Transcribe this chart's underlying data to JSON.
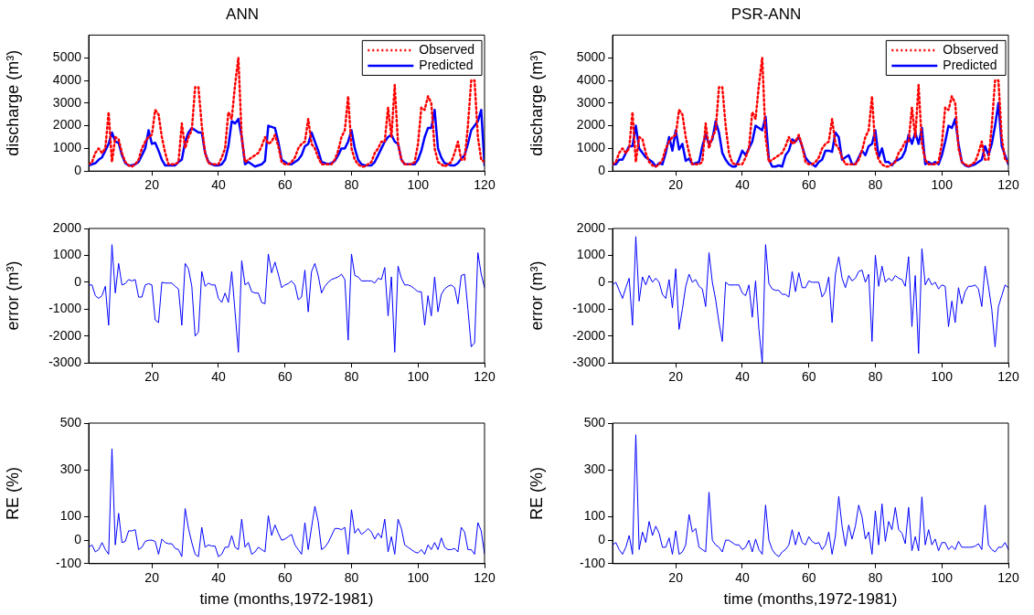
{
  "chart_data": [
    {
      "type": "line",
      "title": "ANN",
      "ylabel": "discharge (m³)",
      "legend": "top right",
      "xlim": [
        1,
        120
      ],
      "xticks": [
        20,
        40,
        60,
        80,
        100,
        120
      ],
      "ylim": [
        0,
        6000
      ],
      "yticks": [
        0,
        1000,
        2000,
        3000,
        4000,
        5000
      ],
      "x": [
        1,
        2,
        3,
        4,
        5,
        6,
        7,
        8,
        9,
        10,
        11,
        12,
        13,
        14,
        15,
        16,
        17,
        18,
        19,
        20,
        21,
        22,
        23,
        24,
        25,
        26,
        27,
        28,
        29,
        30,
        31,
        32,
        33,
        34,
        35,
        36,
        37,
        38,
        39,
        40,
        41,
        42,
        43,
        44,
        45,
        46,
        47,
        48,
        49,
        50,
        51,
        52,
        53,
        54,
        55,
        56,
        57,
        58,
        59,
        60,
        61,
        62,
        63,
        64,
        65,
        66,
        67,
        68,
        69,
        70,
        71,
        72,
        73,
        74,
        75,
        76,
        77,
        78,
        79,
        80,
        81,
        82,
        83,
        84,
        85,
        86,
        87,
        88,
        89,
        90,
        91,
        92,
        93,
        94,
        95,
        96,
        97,
        98,
        99,
        100,
        101,
        102,
        103,
        104,
        105,
        106,
        107,
        108,
        109,
        110,
        111,
        112,
        113,
        114,
        115,
        116,
        117,
        118,
        119,
        120
      ],
      "series": [
        {
          "name": "Observed",
          "color": "#ff0000",
          "line_style": "dotted",
          "values": [
            300,
            400,
            800,
            1000,
            800,
            1000,
            2600,
            400,
            1500,
            1400,
            800,
            400,
            250,
            200,
            300,
            500,
            1000,
            1300,
            1500,
            1600,
            2700,
            2500,
            1500,
            800,
            300,
            300,
            300,
            400,
            2100,
            1000,
            1500,
            1800,
            3700,
            3700,
            2000,
            800,
            350,
            300,
            300,
            300,
            600,
            1000,
            2600,
            2300,
            3800,
            5000,
            1500,
            400,
            500,
            600,
            700,
            800,
            1100,
            1500,
            1200,
            1300,
            1600,
            1100,
            400,
            300,
            300,
            400,
            600,
            1000,
            1200,
            1300,
            2300,
            1200,
            1000,
            600,
            300,
            300,
            300,
            300,
            500,
            900,
            1500,
            1800,
            3300,
            1000,
            500,
            300,
            200,
            200,
            300,
            400,
            800,
            1000,
            1300,
            1300,
            2800,
            1500,
            3800,
            1200,
            500,
            300,
            300,
            300,
            400,
            1200,
            2800,
            2700,
            3300,
            3000,
            1000,
            400,
            300,
            200,
            300,
            400,
            800,
            1300,
            500,
            500,
            2000,
            4000,
            4000,
            1500,
            500,
            400
          ]
        },
        {
          "name": "Predicted",
          "color": "#0000ff",
          "line_style": "solid",
          "values": [
            250,
            300,
            350,
            500,
            600,
            900,
            1200,
            1700,
            1300,
            1250,
            700,
            350,
            250,
            250,
            300,
            400,
            700,
            1000,
            1800,
            1200,
            1250,
            900,
            500,
            250,
            250,
            250,
            250,
            400,
            500,
            1300,
            1700,
            1900,
            1800,
            1700,
            1700,
            800,
            400,
            300,
            250,
            250,
            300,
            500,
            1100,
            2200,
            2100,
            2300,
            1500,
            300,
            400,
            300,
            200,
            250,
            300,
            450,
            2000,
            1950,
            1900,
            1300,
            500,
            400,
            300,
            300,
            400,
            500,
            700,
            1100,
            1200,
            1700,
            1300,
            900,
            400,
            350,
            300,
            350,
            450,
            700,
            1000,
            1000,
            1300,
            1800,
            1000,
            500,
            300,
            250,
            250,
            250,
            400,
            700,
            1000,
            1300,
            1500,
            1600,
            1300,
            1200,
            500,
            300,
            300,
            300,
            300,
            500,
            900,
            1500,
            1900,
            1900,
            2700,
            1000,
            600,
            350,
            300,
            250,
            250,
            350,
            550,
            700,
            1200,
            1800,
            2000,
            2200,
            2700,
            250
          ]
        }
      ]
    },
    {
      "type": "line",
      "title": "PSR-ANN",
      "ylabel": "discharge (m³)",
      "legend": "top right",
      "xlim": [
        1,
        120
      ],
      "xticks": [
        20,
        40,
        60,
        80,
        100,
        120
      ],
      "ylim": [
        0,
        6000
      ],
      "yticks": [
        0,
        1000,
        2000,
        3000,
        4000,
        5000
      ],
      "x": [
        1,
        2,
        3,
        4,
        5,
        6,
        7,
        8,
        9,
        10,
        11,
        12,
        13,
        14,
        15,
        16,
        17,
        18,
        19,
        20,
        21,
        22,
        23,
        24,
        25,
        26,
        27,
        28,
        29,
        30,
        31,
        32,
        33,
        34,
        35,
        36,
        37,
        38,
        39,
        40,
        41,
        42,
        43,
        44,
        45,
        46,
        47,
        48,
        49,
        50,
        51,
        52,
        53,
        54,
        55,
        56,
        57,
        58,
        59,
        60,
        61,
        62,
        63,
        64,
        65,
        66,
        67,
        68,
        69,
        70,
        71,
        72,
        73,
        74,
        75,
        76,
        77,
        78,
        79,
        80,
        81,
        82,
        83,
        84,
        85,
        86,
        87,
        88,
        89,
        90,
        91,
        92,
        93,
        94,
        95,
        96,
        97,
        98,
        99,
        100,
        101,
        102,
        103,
        104,
        105,
        106,
        107,
        108,
        109,
        110,
        111,
        112,
        113,
        114,
        115,
        116,
        117,
        118,
        119,
        120
      ],
      "series": [
        {
          "name": "Observed",
          "color": "#ff0000",
          "line_style": "dotted",
          "values": [
            300,
            400,
            800,
            1000,
            800,
            1000,
            2600,
            400,
            1500,
            1400,
            800,
            400,
            250,
            200,
            300,
            500,
            1000,
            1300,
            1500,
            1600,
            2700,
            2500,
            1500,
            800,
            300,
            300,
            300,
            400,
            2100,
            1000,
            1500,
            1800,
            3700,
            3700,
            2000,
            800,
            350,
            300,
            300,
            300,
            600,
            1000,
            2600,
            2300,
            3800,
            5000,
            1500,
            400,
            500,
            600,
            700,
            800,
            1100,
            1500,
            1200,
            1300,
            1600,
            1100,
            400,
            300,
            300,
            400,
            600,
            1000,
            1200,
            1300,
            2300,
            1200,
            1000,
            600,
            300,
            300,
            300,
            300,
            500,
            900,
            1500,
            1800,
            3300,
            1000,
            500,
            300,
            200,
            200,
            300,
            400,
            800,
            1000,
            1300,
            1300,
            2800,
            1500,
            3800,
            1200,
            500,
            300,
            300,
            300,
            400,
            1200,
            2800,
            2700,
            3300,
            3000,
            1000,
            400,
            300,
            200,
            300,
            400,
            800,
            1300,
            500,
            500,
            2000,
            4000,
            4000,
            1500,
            500,
            400
          ]
        },
        {
          "name": "Predicted",
          "color": "#0000ff",
          "line_style": "solid",
          "values": [
            300,
            300,
            500,
            500,
            800,
            1100,
            1100,
            2000,
            1000,
            800,
            600,
            500,
            400,
            200,
            350,
            300,
            800,
            1500,
            900,
            1800,
            950,
            1200,
            450,
            550,
            300,
            350,
            400,
            1100,
            1600,
            1200,
            1400,
            2200,
            1700,
            800,
            500,
            300,
            200,
            200,
            500,
            900,
            700,
            1000,
            1300,
            2000,
            1900,
            1800,
            2400,
            500,
            200,
            200,
            250,
            200,
            700,
            900,
            1400,
            1300,
            1500,
            1100,
            600,
            400,
            300,
            200,
            400,
            500,
            900,
            900,
            850,
            1700,
            1500,
            500,
            600,
            700,
            300,
            300,
            600,
            900,
            700,
            1100,
            1200,
            1800,
            600,
            1000,
            400,
            400,
            250,
            450,
            500,
            600,
            900,
            1600,
            1200,
            1700,
            1200,
            1900,
            300,
            400,
            300,
            400,
            300,
            700,
            1300,
            2000,
            1900,
            2300,
            1200,
            400,
            250,
            200,
            250,
            300,
            400,
            500,
            1100,
            700,
            1200,
            2000,
            3000,
            1100,
            700,
            300
          ]
        }
      ]
    },
    {
      "type": "line",
      "ylabel": "error (m³)",
      "xlim": [
        1,
        120
      ],
      "xticks": [
        20,
        40,
        60,
        80,
        100,
        120
      ],
      "ylim": [
        -3000,
        2000
      ],
      "yticks": [
        -3000,
        -2000,
        -1000,
        0,
        1000,
        2000
      ],
      "x": [
        1,
        2,
        3,
        4,
        5,
        6,
        7,
        8,
        9,
        10,
        11,
        12,
        13,
        14,
        15,
        16,
        17,
        18,
        19,
        20,
        21,
        22,
        23,
        24,
        25,
        26,
        27,
        28,
        29,
        30,
        31,
        32,
        33,
        34,
        35,
        36,
        37,
        38,
        39,
        40,
        41,
        42,
        43,
        44,
        45,
        46,
        47,
        48,
        49,
        50,
        51,
        52,
        53,
        54,
        55,
        56,
        57,
        58,
        59,
        60,
        61,
        62,
        63,
        64,
        65,
        66,
        67,
        68,
        69,
        70,
        71,
        72,
        73,
        74,
        75,
        76,
        77,
        78,
        79,
        80,
        81,
        82,
        83,
        84,
        85,
        86,
        87,
        88,
        89,
        90,
        91,
        92,
        93,
        94,
        95,
        96,
        97,
        98,
        99,
        100,
        101,
        102,
        103,
        104,
        105,
        106,
        107,
        108,
        109,
        110,
        111,
        112,
        113,
        114,
        115,
        116,
        117,
        118,
        119,
        120
      ],
      "series": [
        {
          "color": "#0000ff",
          "values": [
            -100,
            -100,
            -500,
            -600,
            -500,
            -150,
            -1600,
            1400,
            -400,
            700,
            -100,
            -50,
            100,
            50,
            100,
            -550,
            -550,
            -100,
            -50,
            -100,
            -1400,
            -1500,
            0,
            -30,
            -30,
            -30,
            -150,
            -250,
            -1600,
            700,
            500,
            -150,
            -2000,
            -1850,
            400,
            -150,
            -30,
            -100,
            -100,
            -600,
            -750,
            -400,
            -750,
            400,
            -1100,
            -2600,
            800,
            -100,
            0,
            -350,
            -400,
            -400,
            -750,
            -800,
            1050,
            350,
            750,
            300,
            -200,
            -100,
            -50,
            50,
            -100,
            -650,
            -550,
            450,
            -1100,
            400,
            700,
            250,
            -400,
            -150,
            0,
            100,
            150,
            200,
            300,
            100,
            -2150,
            1050,
            250,
            200,
            50,
            50,
            50,
            50,
            -30,
            150,
            100,
            550,
            -1250,
            200,
            -2600,
            600,
            150,
            -100,
            -100,
            -150,
            -250,
            -350,
            -350,
            -1600,
            -500,
            -1250,
            200,
            -1100,
            -450,
            -250,
            -150,
            -100,
            -200,
            -800,
            250,
            300,
            -1000,
            -2400,
            -2250,
            1100,
            300,
            -200
          ]
        }
      ]
    },
    {
      "type": "line",
      "ylabel": "error (m³)",
      "xlim": [
        1,
        120
      ],
      "xticks": [
        20,
        40,
        60,
        80,
        100,
        120
      ],
      "ylim": [
        -3000,
        2000
      ],
      "yticks": [
        -3000,
        -2000,
        -1000,
        0,
        1000,
        2000
      ],
      "x": [
        1,
        2,
        3,
        4,
        5,
        6,
        7,
        8,
        9,
        10,
        11,
        12,
        13,
        14,
        15,
        16,
        17,
        18,
        19,
        20,
        21,
        22,
        23,
        24,
        25,
        26,
        27,
        28,
        29,
        30,
        31,
        32,
        33,
        34,
        35,
        36,
        37,
        38,
        39,
        40,
        41,
        42,
        43,
        44,
        45,
        46,
        47,
        48,
        49,
        50,
        51,
        52,
        53,
        54,
        55,
        56,
        57,
        58,
        59,
        60,
        61,
        62,
        63,
        64,
        65,
        66,
        67,
        68,
        69,
        70,
        71,
        72,
        73,
        74,
        75,
        76,
        77,
        78,
        79,
        80,
        81,
        82,
        83,
        84,
        85,
        86,
        87,
        88,
        89,
        90,
        91,
        92,
        93,
        94,
        95,
        96,
        97,
        98,
        99,
        100,
        101,
        102,
        103,
        104,
        105,
        106,
        107,
        108,
        109,
        110,
        111,
        112,
        113,
        114,
        115,
        116,
        117,
        118,
        119,
        120
      ],
      "series": [
        {
          "color": "#0000ff",
          "values": [
            -100,
            0,
            -300,
            -600,
            -200,
            150,
            -1600,
            1700,
            -700,
            200,
            -100,
            250,
            0,
            150,
            0,
            -450,
            -600,
            100,
            -950,
            500,
            -1750,
            -1000,
            -150,
            300,
            0,
            100,
            -150,
            -250,
            -900,
            1100,
            0,
            -650,
            -1500,
            -2200,
            0,
            -100,
            -100,
            -100,
            -100,
            -400,
            -500,
            -100,
            -1300,
            50,
            -1750,
            -3000,
            1400,
            -50,
            -250,
            -300,
            -300,
            -450,
            -450,
            -550,
            400,
            -350,
            350,
            -200,
            -200,
            50,
            0,
            0,
            0,
            -550,
            -350,
            200,
            -1500,
            300,
            950,
            150,
            -200,
            250,
            50,
            150,
            400,
            450,
            0,
            300,
            -2200,
            1000,
            -150,
            600,
            0,
            150,
            50,
            250,
            150,
            100,
            -150,
            950,
            -1650,
            250,
            -2650,
            1250,
            -100,
            150,
            -100,
            0,
            -250,
            -100,
            -150,
            -1650,
            -700,
            -1500,
            -200,
            -800,
            -350,
            -150,
            -150,
            -100,
            -250,
            -900,
            600,
            -150,
            -1000,
            -2400,
            -900,
            -500,
            -100,
            -200
          ]
        }
      ]
    },
    {
      "type": "line",
      "ylabel": "RE (%)",
      "xlabel": "time (months,1972-1981)",
      "xlim": [
        1,
        120
      ],
      "xticks": [
        20,
        40,
        60,
        80,
        100,
        120
      ],
      "ylim": [
        -100,
        500
      ],
      "yticks": [
        -100,
        0,
        100,
        300,
        500
      ],
      "x": [
        1,
        2,
        3,
        4,
        5,
        6,
        7,
        8,
        9,
        10,
        11,
        12,
        13,
        14,
        15,
        16,
        17,
        18,
        19,
        20,
        21,
        22,
        23,
        24,
        25,
        26,
        27,
        28,
        29,
        30,
        31,
        32,
        33,
        34,
        35,
        36,
        37,
        38,
        39,
        40,
        41,
        42,
        43,
        44,
        45,
        46,
        47,
        48,
        49,
        50,
        51,
        52,
        53,
        54,
        55,
        56,
        57,
        58,
        59,
        60,
        61,
        62,
        63,
        64,
        65,
        66,
        67,
        68,
        69,
        70,
        71,
        72,
        73,
        74,
        75,
        76,
        77,
        78,
        79,
        80,
        81,
        82,
        83,
        84,
        85,
        86,
        87,
        88,
        89,
        90,
        91,
        92,
        93,
        94,
        95,
        96,
        97,
        98,
        99,
        100,
        101,
        102,
        103,
        104,
        105,
        106,
        107,
        108,
        109,
        110,
        111,
        112,
        113,
        114,
        115,
        116,
        117,
        118,
        119,
        120
      ],
      "series": [
        {
          "color": "#0000ff",
          "values": [
            -30,
            -20,
            -50,
            -40,
            -10,
            -40,
            -60,
            390,
            -20,
            115,
            -10,
            -5,
            40,
            40,
            45,
            -40,
            -30,
            -5,
            0,
            0,
            -5,
            -60,
            5,
            -10,
            -15,
            -15,
            -35,
            -40,
            -70,
            135,
            50,
            -10,
            -60,
            -70,
            55,
            -30,
            -20,
            -25,
            -25,
            -70,
            -60,
            -30,
            -30,
            20,
            -30,
            -40,
            90,
            -30,
            -10,
            -60,
            -50,
            -30,
            -40,
            -50,
            105,
            20,
            65,
            30,
            0,
            5,
            15,
            25,
            -20,
            -40,
            -60,
            75,
            -40,
            55,
            145,
            80,
            -40,
            -30,
            -10,
            20,
            50,
            50,
            45,
            55,
            -60,
            130,
            30,
            50,
            25,
            35,
            50,
            35,
            5,
            30,
            10,
            90,
            -50,
            15,
            -60,
            90,
            50,
            -20,
            -30,
            -40,
            -50,
            -55,
            -40,
            -60,
            -20,
            -40,
            -10,
            -40,
            10,
            -30,
            -40,
            -40,
            -35,
            -50,
            55,
            35,
            -40,
            -40,
            -60,
            75,
            40,
            -60
          ]
        }
      ]
    },
    {
      "type": "line",
      "ylabel": "RE (%)",
      "xlabel": "time (months,1972-1981)",
      "xlim": [
        1,
        120
      ],
      "xticks": [
        20,
        40,
        60,
        80,
        100,
        120
      ],
      "ylim": [
        -100,
        500
      ],
      "yticks": [
        -100,
        0,
        100,
        300,
        500
      ],
      "x": [
        1,
        2,
        3,
        4,
        5,
        6,
        7,
        8,
        9,
        10,
        11,
        12,
        13,
        14,
        15,
        16,
        17,
        18,
        19,
        20,
        21,
        22,
        23,
        24,
        25,
        26,
        27,
        28,
        29,
        30,
        31,
        32,
        33,
        34,
        35,
        36,
        37,
        38,
        39,
        40,
        41,
        42,
        43,
        44,
        45,
        46,
        47,
        48,
        49,
        50,
        51,
        52,
        53,
        54,
        55,
        56,
        57,
        58,
        59,
        60,
        61,
        62,
        63,
        64,
        65,
        66,
        67,
        68,
        69,
        70,
        71,
        72,
        73,
        74,
        75,
        76,
        77,
        78,
        79,
        80,
        81,
        82,
        83,
        84,
        85,
        86,
        87,
        88,
        89,
        90,
        91,
        92,
        93,
        94,
        95,
        96,
        97,
        98,
        99,
        100,
        101,
        102,
        103,
        104,
        105,
        106,
        107,
        108,
        109,
        110,
        111,
        112,
        113,
        114,
        115,
        116,
        117,
        118,
        119,
        120
      ],
      "series": [
        {
          "color": "#0000ff",
          "values": [
            -20,
            -10,
            -40,
            -60,
            -30,
            20,
            -60,
            450,
            -40,
            35,
            -10,
            80,
            20,
            60,
            30,
            -30,
            -30,
            10,
            -60,
            40,
            -60,
            -50,
            -20,
            110,
            35,
            50,
            -30,
            -40,
            -50,
            205,
            0,
            -20,
            -30,
            -50,
            0,
            0,
            -10,
            -20,
            -20,
            -40,
            -30,
            0,
            -50,
            5,
            -40,
            -60,
            150,
            0,
            -40,
            -60,
            -70,
            -50,
            -40,
            -20,
            45,
            -20,
            35,
            -10,
            -20,
            15,
            -5,
            -15,
            -10,
            -40,
            -20,
            35,
            -60,
            20,
            187,
            60,
            -25,
            65,
            5,
            60,
            150,
            100,
            5,
            35,
            -60,
            125,
            -20,
            155,
            -5,
            80,
            45,
            140,
            45,
            30,
            -15,
            140,
            -45,
            15,
            -45,
            185,
            -20,
            45,
            -20,
            5,
            -45,
            -10,
            -10,
            -40,
            -25,
            -40,
            -5,
            -30,
            -30,
            -30,
            -30,
            -25,
            -15,
            -40,
            150,
            -20,
            -40,
            -50,
            -30,
            -30,
            -10,
            -40
          ]
        }
      ]
    }
  ]
}
